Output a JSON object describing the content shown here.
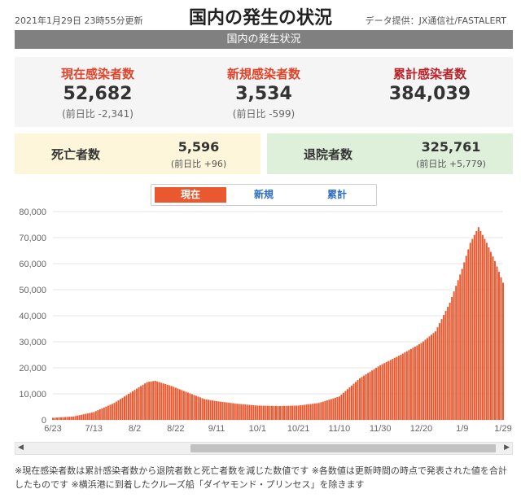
{
  "header": {
    "updated": "2021年1月29日 23時55分更新",
    "title": "国内の発生の状況",
    "source": "データ提供：JX通信社/FASTALERT",
    "banner": "国内の発生状況"
  },
  "stats": [
    {
      "label": "現在感染者数",
      "value": "52,682",
      "diff": "(前日比 -2,341)",
      "color": "#e0442a"
    },
    {
      "label": "新規感染者数",
      "value": "3,534",
      "diff": "(前日比 -599)",
      "color": "#e0442a"
    },
    {
      "label": "累計感染者数",
      "value": "384,039",
      "diff": "",
      "color": "#b8242a"
    }
  ],
  "deaths": {
    "label": "死亡者数",
    "value": "5,596",
    "diff": "(前日比 +96)"
  },
  "discharged": {
    "label": "退院者数",
    "value": "325,761",
    "diff": "(前日比 +5,779)"
  },
  "tabs": [
    {
      "label": "現在",
      "active": true
    },
    {
      "label": "新規",
      "active": false
    },
    {
      "label": "累計",
      "active": false
    }
  ],
  "scroll": {
    "left": "◀",
    "right": "▶"
  },
  "note": "※現在感染者数は累計感染者数から退院者数と死亡者数を減じた数値です ※各数値は更新時間の時点で発表された値を合計したものです ※横浜港に到着したクルーズ船「ダイヤモンド・プリンセス」を除きます",
  "chart_data": {
    "type": "bar",
    "color": "#e9582f",
    "ylim": [
      0,
      80000
    ],
    "yticks": [
      "0",
      "10,000",
      "20,000",
      "30,000",
      "40,000",
      "50,000",
      "60,000",
      "70,000",
      "80,000"
    ],
    "xticks": [
      "6/23",
      "7/13",
      "8/2",
      "8/22",
      "9/11",
      "10/1",
      "10/21",
      "11/10",
      "11/30",
      "12/20",
      "1/9",
      "1/29"
    ],
    "x_start": "6/23",
    "x_end": "1/29",
    "keypoints": [
      [
        "6/23",
        800
      ],
      [
        "7/3",
        1300
      ],
      [
        "7/13",
        3000
      ],
      [
        "7/23",
        6500
      ],
      [
        "8/2",
        11500
      ],
      [
        "8/8",
        14500
      ],
      [
        "8/12",
        15000
      ],
      [
        "8/20",
        13000
      ],
      [
        "8/28",
        10500
      ],
      [
        "9/5",
        8000
      ],
      [
        "9/11",
        7200
      ],
      [
        "9/21",
        6200
      ],
      [
        "10/1",
        5500
      ],
      [
        "10/11",
        5300
      ],
      [
        "10/21",
        5500
      ],
      [
        "10/31",
        6500
      ],
      [
        "11/10",
        9000
      ],
      [
        "11/20",
        16000
      ],
      [
        "11/30",
        21000
      ],
      [
        "12/10",
        25000
      ],
      [
        "12/20",
        29500
      ],
      [
        "12/27",
        34000
      ],
      [
        "1/3",
        45000
      ],
      [
        "1/9",
        58000
      ],
      [
        "1/13",
        68000
      ],
      [
        "1/17",
        74000
      ],
      [
        "1/21",
        68000
      ],
      [
        "1/25",
        61000
      ],
      [
        "1/29",
        52682
      ]
    ]
  }
}
